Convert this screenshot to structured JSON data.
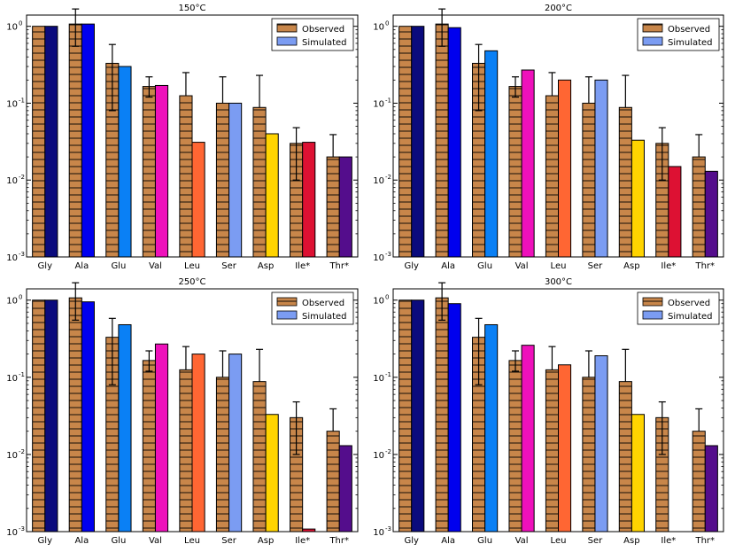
{
  "colors": {
    "observed": "#c8864a",
    "observed_hatch": "#000000",
    "simulated_legend": "#7b9cf2",
    "bar_edge": "#000000"
  },
  "sim_colors": [
    "#0b0b7d",
    "#0000ee",
    "#0a80f5",
    "#ee11bb",
    "#ff6633",
    "#7b9cf2",
    "#ffd400",
    "#dd1133",
    "#540d8c"
  ],
  "chart_data": [
    {
      "type": "bar",
      "title": "150°C",
      "categories": [
        "Gly",
        "Ala",
        "Glu",
        "Val",
        "Leu",
        "Ser",
        "Asp",
        "Ile*",
        "Thr*"
      ],
      "yscale": "log",
      "ylim": [
        0.001,
        1.4
      ],
      "yticks": [
        {
          "value": 1,
          "base": "10",
          "exp": "0"
        },
        {
          "value": 0.1,
          "base": "10",
          "exp": "-1"
        },
        {
          "value": 0.01,
          "base": "10",
          "exp": "-2"
        },
        {
          "value": 0.001,
          "base": "10",
          "exp": "-3"
        }
      ],
      "legend": {
        "position": "top-right",
        "labels": [
          "Observed",
          "Simulated"
        ]
      },
      "series": [
        {
          "name": "Observed",
          "values": [
            1.0,
            1.07,
            0.33,
            0.165,
            0.125,
            0.1,
            0.088,
            0.03,
            0.02
          ],
          "err_low": [
            null,
            0.55,
            0.08,
            0.12,
            null,
            null,
            null,
            0.01,
            null
          ],
          "err_high": [
            null,
            1.68,
            0.58,
            0.22,
            0.25,
            0.22,
            0.23,
            0.048,
            0.039
          ]
        },
        {
          "name": "Simulated",
          "values": [
            1.0,
            1.07,
            0.3,
            0.17,
            0.031,
            0.1,
            0.04,
            0.031,
            0.02
          ]
        }
      ]
    },
    {
      "type": "bar",
      "title": "200°C",
      "categories": [
        "Gly",
        "Ala",
        "Glu",
        "Val",
        "Leu",
        "Ser",
        "Asp",
        "Ile*",
        "Thr*"
      ],
      "yscale": "log",
      "ylim": [
        0.001,
        1.4
      ],
      "yticks": [
        {
          "value": 1,
          "base": "10",
          "exp": "0"
        },
        {
          "value": 0.1,
          "base": "10",
          "exp": "-1"
        },
        {
          "value": 0.01,
          "base": "10",
          "exp": "-2"
        },
        {
          "value": 0.001,
          "base": "10",
          "exp": "-3"
        }
      ],
      "legend": {
        "position": "top-right",
        "labels": [
          "Observed",
          "Simulated"
        ]
      },
      "series": [
        {
          "name": "Observed",
          "values": [
            1.0,
            1.07,
            0.33,
            0.165,
            0.125,
            0.1,
            0.088,
            0.03,
            0.02
          ],
          "err_low": [
            null,
            0.55,
            0.08,
            0.12,
            null,
            null,
            null,
            0.01,
            null
          ],
          "err_high": [
            null,
            1.68,
            0.58,
            0.22,
            0.25,
            0.22,
            0.23,
            0.048,
            0.039
          ]
        },
        {
          "name": "Simulated",
          "values": [
            1.0,
            0.96,
            0.48,
            0.27,
            0.2,
            0.2,
            0.033,
            0.015,
            0.013
          ]
        }
      ]
    },
    {
      "type": "bar",
      "title": "250°C",
      "categories": [
        "Gly",
        "Ala",
        "Glu",
        "Val",
        "Leu",
        "Ser",
        "Asp",
        "Ile*",
        "Thr*"
      ],
      "yscale": "log",
      "ylim": [
        0.001,
        1.4
      ],
      "yticks": [
        {
          "value": 1,
          "base": "10",
          "exp": "0"
        },
        {
          "value": 0.1,
          "base": "10",
          "exp": "-1"
        },
        {
          "value": 0.01,
          "base": "10",
          "exp": "-2"
        },
        {
          "value": 0.001,
          "base": "10",
          "exp": "-3"
        }
      ],
      "legend": {
        "position": "top-right",
        "labels": [
          "Observed",
          "Simulated"
        ]
      },
      "series": [
        {
          "name": "Observed",
          "values": [
            1.0,
            1.07,
            0.33,
            0.165,
            0.125,
            0.1,
            0.088,
            0.03,
            0.02
          ],
          "err_low": [
            null,
            0.55,
            0.08,
            0.12,
            null,
            null,
            null,
            0.01,
            null
          ],
          "err_high": [
            null,
            1.68,
            0.58,
            0.22,
            0.25,
            0.22,
            0.23,
            0.048,
            0.039
          ]
        },
        {
          "name": "Simulated",
          "values": [
            1.0,
            0.95,
            0.48,
            0.27,
            0.2,
            0.2,
            0.033,
            0.00108,
            0.013
          ]
        }
      ]
    },
    {
      "type": "bar",
      "title": "300°C",
      "categories": [
        "Gly",
        "Ala",
        "Glu",
        "Val",
        "Leu",
        "Ser",
        "Asp",
        "Ile*",
        "Thr*"
      ],
      "yscale": "log",
      "ylim": [
        0.001,
        1.4
      ],
      "yticks": [
        {
          "value": 1,
          "base": "10",
          "exp": "0"
        },
        {
          "value": 0.1,
          "base": "10",
          "exp": "-1"
        },
        {
          "value": 0.01,
          "base": "10",
          "exp": "-2"
        },
        {
          "value": 0.001,
          "base": "10",
          "exp": "-3"
        }
      ],
      "legend": {
        "position": "top-right",
        "labels": [
          "Observed",
          "Simulated"
        ]
      },
      "series": [
        {
          "name": "Observed",
          "values": [
            1.0,
            1.07,
            0.33,
            0.165,
            0.125,
            0.1,
            0.088,
            0.03,
            0.02
          ],
          "err_low": [
            null,
            0.55,
            0.08,
            0.12,
            null,
            null,
            null,
            0.01,
            null
          ],
          "err_high": [
            null,
            1.68,
            0.58,
            0.22,
            0.25,
            0.22,
            0.23,
            0.048,
            0.039
          ]
        },
        {
          "name": "Simulated",
          "values": [
            1.0,
            0.9,
            0.48,
            0.26,
            0.145,
            0.19,
            0.033,
            null,
            0.013
          ]
        }
      ]
    }
  ]
}
